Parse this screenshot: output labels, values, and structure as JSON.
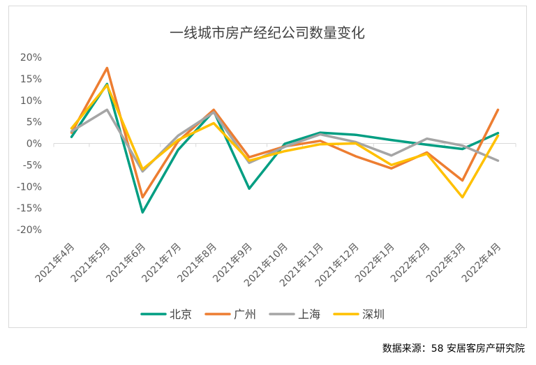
{
  "chart_data": {
    "type": "line",
    "title": "一线城市房产经纪公司数量变化",
    "xlabel": "",
    "ylabel": "",
    "ylim": [
      -20,
      20
    ],
    "yticks": [
      -20,
      -15,
      -10,
      -5,
      0,
      5,
      10,
      15,
      20
    ],
    "ytick_labels": [
      "-20%",
      "-15%",
      "-10%",
      "-5%",
      "0%",
      "5%",
      "10%",
      "15%",
      "20%"
    ],
    "grid": false,
    "legend_position": "bottom",
    "categories": [
      "2021年4月",
      "2021年5月",
      "2021年6月",
      "2021年7月",
      "2021年8月",
      "2021年9月",
      "2021年10月",
      "2021年11月",
      "2021年12月",
      "2022年1月",
      "2022年2月",
      "2022年3月",
      "2022年4月"
    ],
    "series": [
      {
        "name": "北京",
        "color": "#009e82",
        "values": [
          1.5,
          13.8,
          -16.0,
          -1.5,
          7.5,
          -10.5,
          -0.1,
          2.5,
          2.0,
          0.8,
          -0.3,
          -1.3,
          2.4
        ]
      },
      {
        "name": "广州",
        "color": "#ed7d31",
        "values": [
          2.5,
          17.5,
          -12.5,
          0.5,
          7.8,
          -3.2,
          -0.7,
          0.6,
          -3.0,
          -5.8,
          -2.1,
          -8.6,
          7.8
        ]
      },
      {
        "name": "上海",
        "color": "#a5a5a5",
        "values": [
          2.8,
          7.8,
          -6.5,
          1.8,
          7.2,
          -4.5,
          -0.8,
          2.1,
          0.3,
          -2.8,
          1.1,
          -0.5,
          -4.0
        ]
      },
      {
        "name": "深圳",
        "color": "#ffc000",
        "values": [
          3.5,
          13.5,
          -6.0,
          0.8,
          4.7,
          -4.0,
          -1.8,
          -0.2,
          0.0,
          -5.0,
          -2.4,
          -12.5,
          1.8
        ]
      }
    ]
  },
  "source_text": "数据来源：58 安居客房产研究院"
}
